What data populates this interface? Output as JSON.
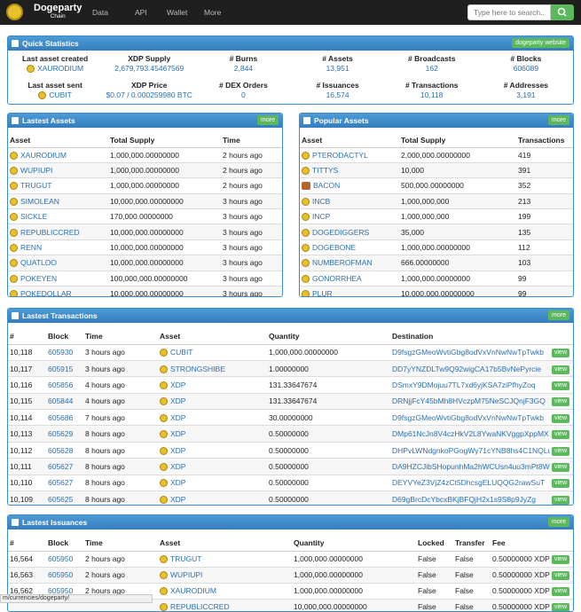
{
  "navbar": {
    "brand": "Dogeparty",
    "brand_sub": "Chain",
    "menu": [
      "Data",
      "API",
      "Wallet",
      "More"
    ],
    "search_placeholder": "Type here to search..."
  },
  "quick_statistics": {
    "title": "Quick Statistics",
    "button": "dogeparty website",
    "stats": [
      {
        "label": "Last asset created",
        "value": "XAURODIUM"
      },
      {
        "label": "XDP Supply",
        "value": "2,679,793.45467569"
      },
      {
        "label": "# Burns",
        "value": "2,844"
      },
      {
        "label": "# Assets",
        "value": "13,951"
      },
      {
        "label": "# Broadcasts",
        "value": "162"
      },
      {
        "label": "# Blocks",
        "value": "606089"
      },
      {
        "label": "Last asset sent",
        "value": "CUBIT"
      },
      {
        "label": "XDP Price",
        "value": "$0.07 / 0.000259980 BTC"
      },
      {
        "label": "# DEX Orders",
        "value": "0"
      },
      {
        "label": "# Issuances",
        "value": "16,574"
      },
      {
        "label": "# Transactions",
        "value": "10,118"
      },
      {
        "label": "# Addresses",
        "value": "3,191"
      }
    ]
  },
  "latest_assets": {
    "title": "Lastest Assets",
    "more": "more",
    "columns": [
      "Asset",
      "Total Supply",
      "Time"
    ],
    "rows": [
      [
        "XAURODIUM",
        "1,000,000.00000000",
        "2 hours ago"
      ],
      [
        "WUPIUPI",
        "1,000,000.00000000",
        "2 hours ago"
      ],
      [
        "TRUGUT",
        "1,000,000.00000000",
        "2 hours ago"
      ],
      [
        "SIMOLEAN",
        "10,000,000.00000000",
        "3 hours ago"
      ],
      [
        "SICKLE",
        "170,000.00000000",
        "3 hours ago"
      ],
      [
        "REPUBLICCRED",
        "10,000,000.00000000",
        "3 hours ago"
      ],
      [
        "RENN",
        "10,000,000.00000000",
        "3 hours ago"
      ],
      [
        "QUATLOO",
        "10,000,000.00000000",
        "3 hours ago"
      ],
      [
        "POKEYEN",
        "100,000,000.00000000",
        "3 hours ago"
      ],
      [
        "POKEDOLLAR",
        "10,000,000.00000000",
        "3 hours ago"
      ]
    ]
  },
  "popular_assets": {
    "title": "Popular Assets",
    "more": "more",
    "columns": [
      "Asset",
      "Total Supply",
      "Transactions"
    ],
    "rows": [
      [
        "PTERODACTYL",
        "2,000,000.00000000",
        "419"
      ],
      [
        "TITTYS",
        "10,000",
        "391"
      ],
      [
        "BACON",
        "500,000.00000000",
        "352"
      ],
      [
        "INCB",
        "1,000,000,000",
        "213"
      ],
      [
        "INCP",
        "1,000,000,000",
        "199"
      ],
      [
        "DOGEDIGGERS",
        "35,000",
        "135"
      ],
      [
        "DOGEBONE",
        "1,000,000.00000000",
        "112"
      ],
      [
        "NUMBEROFMAN",
        "666.00000000",
        "103"
      ],
      [
        "GONORRHEA",
        "1,000,000.00000000",
        "99"
      ],
      [
        "PLUR",
        "10,000,000.00000000",
        "99"
      ]
    ]
  },
  "latest_transactions": {
    "title": "Lastest Transactions",
    "more": "more",
    "action": "view",
    "columns": [
      "#",
      "Block",
      "Time",
      "Asset",
      "Quantity",
      "Destination"
    ],
    "rows": [
      [
        "10,118",
        "605930",
        "3 hours ago",
        "CUBIT",
        "1,000,000.00000000",
        "D9fsgzGMeoWvtiGbg8odVxVnNwNwTpTwkb"
      ],
      [
        "10,117",
        "605915",
        "3 hours ago",
        "STRONGSHIBE",
        "1.00000000",
        "DD7yYNZDLTw9Q92wigCA17b5BvNePyrcie"
      ],
      [
        "10,116",
        "605856",
        "4 hours ago",
        "XDP",
        "131.33647674",
        "DSmxY9DMojuu7TL7xd6yjKSA7ziPfhyZoq"
      ],
      [
        "10,115",
        "605844",
        "4 hours ago",
        "XDP",
        "131.33647674",
        "DRNjjFcY45bMh8HVczpM75NeSCJQnjF3GQ"
      ],
      [
        "10,114",
        "605686",
        "7 hours ago",
        "XDP",
        "30.00000000",
        "D9fsgzGMeoWvtiGbg8odVxVnNwNwTpTwkb"
      ],
      [
        "10,113",
        "605629",
        "8 hours ago",
        "XDP",
        "0.50000000",
        "DMp61NcJn8V4czHkV2L8YwaNKVggpXppMX"
      ],
      [
        "10,112",
        "605628",
        "8 hours ago",
        "XDP",
        "0.50000000",
        "DHPvLWNdgnkoPGogWy71cYNB8hs4C1NQLu"
      ],
      [
        "10,111",
        "605627",
        "8 hours ago",
        "XDP",
        "0.50000000",
        "DA9HZCJibSHopunhMa2hWCUsn4uu3mPt8W"
      ],
      [
        "10,110",
        "605627",
        "8 hours ago",
        "XDP",
        "0.50000000",
        "DEYVYeZ3VjZ4zCt5DhcsgELUQQG2rawSuT"
      ],
      [
        "10,109",
        "605625",
        "8 hours ago",
        "XDP",
        "0.50000000",
        "D69gBrcDcYbcxBKjBFQjH2x1s9S8p9JyZg"
      ]
    ]
  },
  "latest_issuances": {
    "title": "Lastest Issuances",
    "more": "more",
    "action": "view",
    "columns": [
      "#",
      "Block",
      "Time",
      "Asset",
      "Quantity",
      "Locked",
      "Transfer",
      "Fee"
    ],
    "rows": [
      [
        "16,564",
        "605950",
        "2 hours ago",
        "TRUGUT",
        "1,000,000.00000000",
        "False",
        "False",
        "0.50000000 XDP"
      ],
      [
        "16,563",
        "605950",
        "2 hours ago",
        "WUPIUPI",
        "1,000,000.00000000",
        "False",
        "False",
        "0.50000000 XDP"
      ],
      [
        "16,562",
        "605950",
        "2 hours ago",
        "XAURODIUM",
        "1,000,000.00000000",
        "False",
        "False",
        "0.50000000 XDP"
      ],
      [
        null,
        null,
        null,
        "REPUBLICCRED",
        "10,000,000.00000000",
        "False",
        "False",
        "0.50000000 XDP"
      ]
    ]
  },
  "status_bar": "m/currencies/dogeparty/"
}
